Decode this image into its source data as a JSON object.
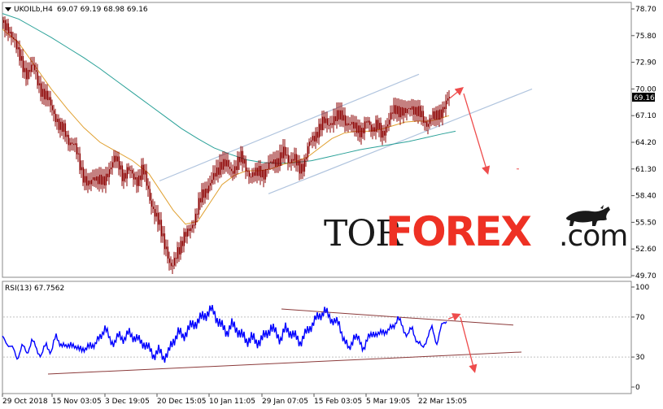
{
  "header": {
    "symbol_label": "UKOILb,H4",
    "ohlc_label": "69.07 69.19 68.98 69.16",
    "rsi_label": "RSI(13) 67.7562"
  },
  "logo": {
    "part1": "TOR",
    "part2": "FOREX",
    "part3": ".com"
  },
  "colors": {
    "candle": "#8b0000",
    "ma_fast": "#e0a030",
    "ma_slow": "#2aa198",
    "channel": "#b0c4de",
    "rsi": "#0000ff",
    "rsi_trend": "#8b3a3a",
    "arrow": "#ee4c4c",
    "logo_red": "#ee3124"
  },
  "chart_data": [
    {
      "type": "candlestick",
      "title": "UKOILb,H4",
      "y_ticks": [
        "78.70",
        "75.80",
        "72.90",
        "70.00",
        "67.10",
        "64.20",
        "61.30",
        "58.40",
        "55.50",
        "52.60",
        "49.70"
      ],
      "ylim": [
        49.7,
        78.7
      ],
      "current_price_label": "69.16",
      "x_ticks": [
        "29 Oct 2018",
        "15 Nov 03:05",
        "3 Dec 19:05",
        "20 Dec 15:05",
        "10 Jan 11:05",
        "29 Jan 07:05",
        "15 Feb 03:05",
        "5 Mar 19:05",
        "22 Mar 15:05"
      ],
      "close_path": [
        [
          0,
          77.2
        ],
        [
          8,
          76.0
        ],
        [
          14,
          75.5
        ],
        [
          20,
          73.5
        ],
        [
          28,
          72.0
        ],
        [
          36,
          72.3
        ],
        [
          44,
          70.5
        ],
        [
          52,
          69.5
        ],
        [
          58,
          68.5
        ],
        [
          64,
          67.0
        ],
        [
          70,
          65.5
        ],
        [
          76,
          65.8
        ],
        [
          82,
          64.5
        ],
        [
          88,
          63.5
        ],
        [
          94,
          62.0
        ],
        [
          100,
          60.5
        ],
        [
          106,
          59.5
        ],
        [
          112,
          60.5
        ],
        [
          118,
          60.0
        ],
        [
          124,
          59.5
        ],
        [
          130,
          61.5
        ],
        [
          136,
          62.5
        ],
        [
          142,
          61.5
        ],
        [
          148,
          60.5
        ],
        [
          154,
          61.5
        ],
        [
          160,
          60.5
        ],
        [
          166,
          60.0
        ],
        [
          172,
          61.0
        ],
        [
          178,
          59.5
        ],
        [
          184,
          57.5
        ],
        [
          190,
          55.5
        ],
        [
          196,
          54.0
        ],
        [
          202,
          52.5
        ],
        [
          206,
          50.5
        ],
        [
          210,
          51.0
        ],
        [
          214,
          52.5
        ],
        [
          220,
          53.0
        ],
        [
          226,
          54.0
        ],
        [
          232,
          55.5
        ],
        [
          238,
          56.5
        ],
        [
          244,
          58.0
        ],
        [
          250,
          59.0
        ],
        [
          256,
          60.0
        ],
        [
          262,
          61.0
        ],
        [
          268,
          62.0
        ],
        [
          274,
          61.5
        ],
        [
          280,
          61.0
        ],
        [
          286,
          62.0
        ],
        [
          292,
          62.5
        ],
        [
          298,
          61.5
        ],
        [
          304,
          60.5
        ],
        [
          310,
          60.8
        ],
        [
          316,
          61.5
        ],
        [
          322,
          60.5
        ],
        [
          328,
          61.5
        ],
        [
          334,
          62.5
        ],
        [
          340,
          62.5
        ],
        [
          346,
          63.0
        ],
        [
          352,
          62.0
        ],
        [
          358,
          62.5
        ],
        [
          364,
          61.5
        ],
        [
          370,
          62.0
        ],
        [
          376,
          63.5
        ],
        [
          382,
          64.5
        ],
        [
          388,
          66.0
        ],
        [
          394,
          66.5
        ],
        [
          400,
          66.0
        ],
        [
          406,
          66.5
        ],
        [
          412,
          67.0
        ],
        [
          418,
          67.5
        ],
        [
          424,
          66.0
        ],
        [
          430,
          65.5
        ],
        [
          436,
          66.0
        ],
        [
          442,
          65.5
        ],
        [
          448,
          66.5
        ],
        [
          454,
          65.5
        ],
        [
          460,
          66.0
        ],
        [
          466,
          65.0
        ],
        [
          472,
          66.5
        ],
        [
          478,
          67.0
        ],
        [
          484,
          67.5
        ],
        [
          490,
          68.0
        ],
        [
          496,
          67.5
        ],
        [
          502,
          68.0
        ],
        [
          508,
          67.5
        ],
        [
          514,
          67.0
        ],
        [
          520,
          66.5
        ],
        [
          526,
          67.0
        ],
        [
          532,
          66.5
        ],
        [
          538,
          67.5
        ],
        [
          544,
          68.5
        ],
        [
          549,
          69.16
        ]
      ],
      "ma_fast_path": [
        [
          0,
          76.5
        ],
        [
          20,
          75.0
        ],
        [
          40,
          72.5
        ],
        [
          60,
          70.0
        ],
        [
          80,
          67.8
        ],
        [
          100,
          65.8
        ],
        [
          120,
          64.2
        ],
        [
          140,
          63.2
        ],
        [
          160,
          62.2
        ],
        [
          180,
          60.8
        ],
        [
          195,
          58.8
        ],
        [
          210,
          56.8
        ],
        [
          225,
          55.3
        ],
        [
          240,
          55.6
        ],
        [
          255,
          57.6
        ],
        [
          270,
          59.6
        ],
        [
          285,
          60.6
        ],
        [
          300,
          61.1
        ],
        [
          315,
          61.1
        ],
        [
          330,
          61.3
        ],
        [
          345,
          61.8
        ],
        [
          360,
          62.1
        ],
        [
          375,
          62.6
        ],
        [
          390,
          63.6
        ],
        [
          405,
          64.6
        ],
        [
          420,
          65.2
        ],
        [
          435,
          65.4
        ],
        [
          450,
          65.4
        ],
        [
          465,
          65.6
        ],
        [
          480,
          66.0
        ],
        [
          495,
          66.4
        ],
        [
          510,
          66.5
        ],
        [
          525,
          66.5
        ],
        [
          535,
          66.7
        ],
        [
          549,
          67.1
        ]
      ],
      "ma_slow_path": [
        [
          0,
          78.2
        ],
        [
          20,
          77.6
        ],
        [
          40,
          76.6
        ],
        [
          60,
          75.6
        ],
        [
          80,
          74.5
        ],
        [
          100,
          73.4
        ],
        [
          120,
          72.2
        ],
        [
          140,
          70.9
        ],
        [
          160,
          69.6
        ],
        [
          180,
          68.3
        ],
        [
          200,
          67.0
        ],
        [
          220,
          65.7
        ],
        [
          240,
          64.6
        ],
        [
          260,
          63.6
        ],
        [
          280,
          62.9
        ],
        [
          300,
          62.3
        ],
        [
          320,
          62.0
        ],
        [
          340,
          61.9
        ],
        [
          360,
          62.0
        ],
        [
          380,
          62.2
        ],
        [
          400,
          62.6
        ],
        [
          420,
          63.0
        ],
        [
          440,
          63.4
        ],
        [
          460,
          63.7
        ],
        [
          480,
          64.0
        ],
        [
          500,
          64.3
        ],
        [
          520,
          64.7
        ],
        [
          540,
          65.1
        ],
        [
          557,
          65.4
        ]
      ],
      "channel_lines": [
        [
          [
            193,
            60.0
          ],
          [
            512,
            71.6
          ]
        ],
        [
          [
            327,
            58.6
          ],
          [
            651,
            70.0
          ]
        ]
      ],
      "forecast_arrows": [
        [
          [
            550,
            69.0
          ],
          [
            564,
            70.0
          ]
        ],
        [
          [
            567,
            69.5
          ],
          [
            596,
            61.0
          ]
        ]
      ]
    },
    {
      "type": "line",
      "title": "RSI(13) 67.7562",
      "y_ticks": [
        "100",
        "70",
        "30",
        "0"
      ],
      "ylim": [
        0,
        100
      ],
      "rsi_path": [
        [
          0,
          48
        ],
        [
          6,
          45
        ],
        [
          12,
          38
        ],
        [
          18,
          30
        ],
        [
          24,
          40
        ],
        [
          30,
          35
        ],
        [
          36,
          46
        ],
        [
          42,
          38
        ],
        [
          48,
          32
        ],
        [
          54,
          42
        ],
        [
          60,
          36
        ],
        [
          66,
          50
        ],
        [
          72,
          44
        ],
        [
          78,
          38
        ],
        [
          84,
          46
        ],
        [
          90,
          36
        ],
        [
          96,
          42
        ],
        [
          102,
          34
        ],
        [
          108,
          45
        ],
        [
          114,
          40
        ],
        [
          120,
          52
        ],
        [
          126,
          58
        ],
        [
          132,
          48
        ],
        [
          138,
          44
        ],
        [
          144,
          52
        ],
        [
          150,
          48
        ],
        [
          156,
          54
        ],
        [
          162,
          50
        ],
        [
          168,
          46
        ],
        [
          174,
          44
        ],
        [
          180,
          38
        ],
        [
          186,
          32
        ],
        [
          192,
          36
        ],
        [
          198,
          30
        ],
        [
          204,
          34
        ],
        [
          210,
          46
        ],
        [
          216,
          55
        ],
        [
          222,
          50
        ],
        [
          228,
          58
        ],
        [
          234,
          62
        ],
        [
          240,
          66
        ],
        [
          246,
          70
        ],
        [
          252,
          74
        ],
        [
          258,
          78
        ],
        [
          264,
          68
        ],
        [
          270,
          60
        ],
        [
          276,
          55
        ],
        [
          282,
          62
        ],
        [
          288,
          58
        ],
        [
          294,
          52
        ],
        [
          300,
          46
        ],
        [
          306,
          50
        ],
        [
          312,
          44
        ],
        [
          318,
          48
        ],
        [
          324,
          52
        ],
        [
          330,
          60
        ],
        [
          336,
          54
        ],
        [
          342,
          48
        ],
        [
          348,
          58
        ],
        [
          354,
          55
        ],
        [
          360,
          50
        ],
        [
          366,
          45
        ],
        [
          372,
          52
        ],
        [
          378,
          60
        ],
        [
          384,
          66
        ],
        [
          390,
          72
        ],
        [
          396,
          76
        ],
        [
          402,
          70
        ],
        [
          408,
          66
        ],
        [
          414,
          62
        ],
        [
          420,
          48
        ],
        [
          426,
          36
        ],
        [
          432,
          52
        ],
        [
          438,
          46
        ],
        [
          444,
          40
        ],
        [
          450,
          48
        ],
        [
          456,
          56
        ],
        [
          462,
          50
        ],
        [
          468,
          58
        ],
        [
          474,
          54
        ],
        [
          480,
          62
        ],
        [
          486,
          68
        ],
        [
          492,
          60
        ],
        [
          498,
          52
        ],
        [
          504,
          58
        ],
        [
          510,
          46
        ],
        [
          516,
          38
        ],
        [
          522,
          50
        ],
        [
          528,
          58
        ],
        [
          534,
          45
        ],
        [
          540,
          60
        ],
        [
          546,
          68
        ]
      ],
      "trend_lines": [
        [
          [
            343,
            78
          ],
          [
            628,
            62
          ]
        ],
        [
          [
            56,
            13
          ],
          [
            638,
            35
          ]
        ]
      ],
      "forecast_arrows": [
        [
          [
            548,
            68
          ],
          [
            560,
            72
          ]
        ],
        [
          [
            563,
            70
          ],
          [
            580,
            17
          ]
        ]
      ]
    }
  ]
}
